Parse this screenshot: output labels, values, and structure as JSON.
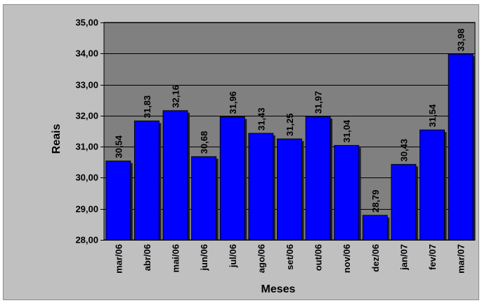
{
  "chart_data": {
    "type": "bar",
    "title": "",
    "xlabel": "Meses",
    "ylabel": "Reais",
    "categories": [
      "mar/06",
      "abr/06",
      "mai/06",
      "jun/06",
      "jul/06",
      "ago/06",
      "set/06",
      "out/06",
      "nov/06",
      "dez/06",
      "jan/07",
      "fev/07",
      "mar/07"
    ],
    "values": [
      30.54,
      31.83,
      32.16,
      30.68,
      31.96,
      31.43,
      31.25,
      31.97,
      31.04,
      28.79,
      30.43,
      31.54,
      33.98
    ],
    "value_labels": [
      "30,54",
      "31,83",
      "32,16",
      "30,68",
      "31,96",
      "31,43",
      "31,25",
      "31,97",
      "31,04",
      "28,79",
      "30,43",
      "31,54",
      "33,98"
    ],
    "ylim": [
      28,
      35
    ],
    "yticks": [
      28,
      29,
      30,
      31,
      32,
      33,
      34,
      35
    ],
    "ytick_labels": [
      "28,00",
      "29,00",
      "30,00",
      "31,00",
      "32,00",
      "33,00",
      "34,00",
      "35,00"
    ],
    "grid": true,
    "legend": "none",
    "colors": {
      "bar": "#0000ff",
      "bar_edge": "#000000",
      "plot_bg": "#808080",
      "chart_bg": "#c0c0c0",
      "grid": "#000000"
    }
  }
}
